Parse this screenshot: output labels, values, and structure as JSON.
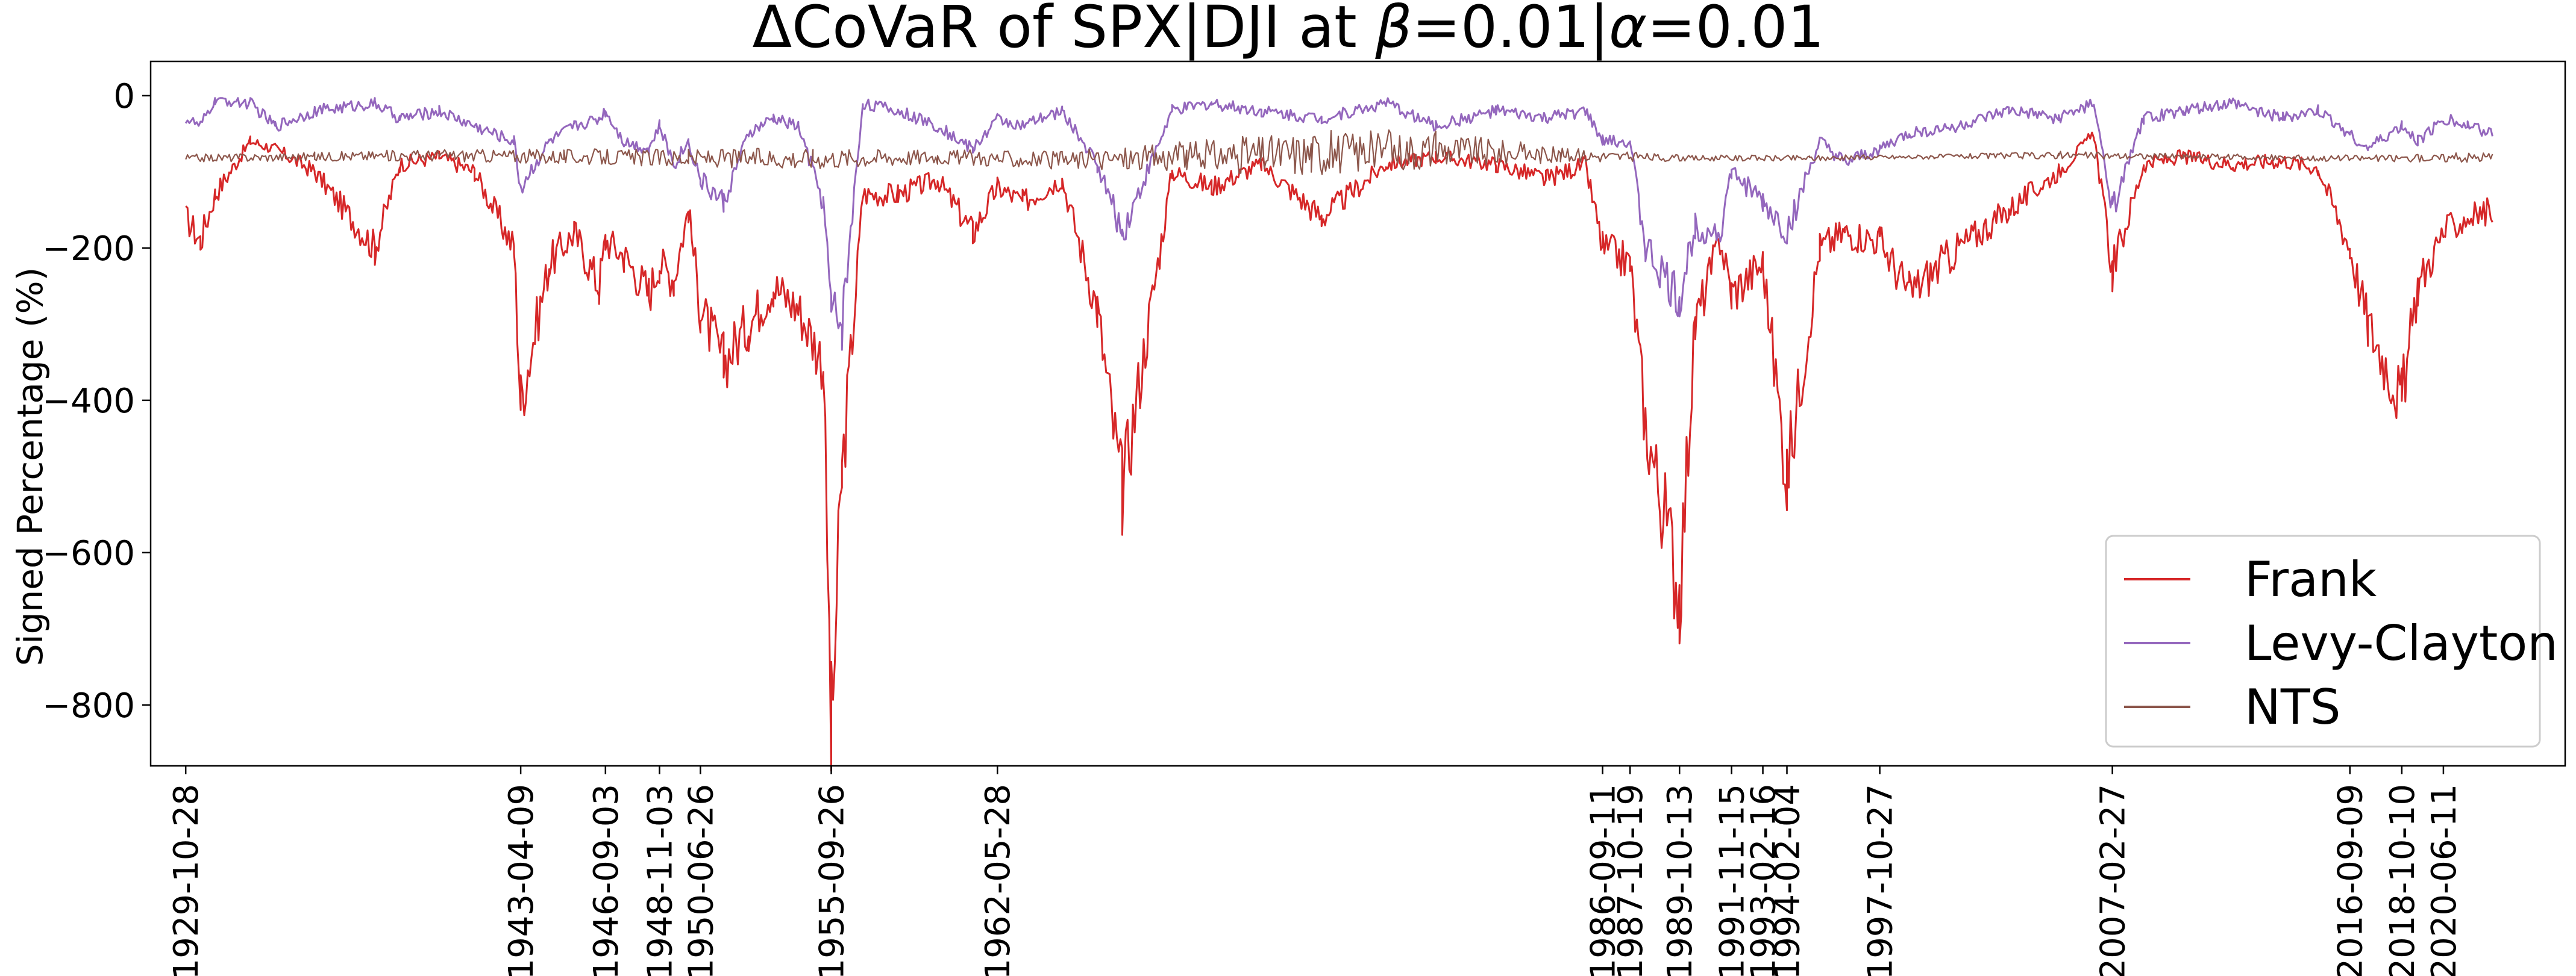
{
  "chart_data": {
    "type": "line",
    "title_parts": {
      "prefix": "ΔCoVaR of SPX|DJI at ",
      "beta_symbol": "β",
      "beta_value": "=0.01|",
      "alpha_symbol": "α",
      "alpha_value": "=0.01"
    },
    "xlabel": "",
    "ylabel": "Signed Percentage (%)",
    "ylim": [
      -880,
      45
    ],
    "yticks": [
      0,
      -200,
      -400,
      -600,
      -800
    ],
    "ytick_labels": [
      "0",
      "−200",
      "−400",
      "−600",
      "−800"
    ],
    "xlim": [
      "1928-06-01",
      "2025-05-01"
    ],
    "xtick_labels": [
      "1929-10-28",
      "1943-04-09",
      "1946-09-03",
      "1948-11-03",
      "1950-06-26",
      "1955-09-26",
      "1962-05-28",
      "1986-09-11",
      "1987-10-19",
      "1989-10-13",
      "1991-11-15",
      "1993-02-16",
      "1994-02-04",
      "1997-10-27",
      "2007-02-27",
      "2016-09-09",
      "2018-10-10",
      "2020-06-11"
    ],
    "grid": false,
    "legend_position": "bottom-right",
    "series": [
      {
        "name": "Frank",
        "color": "#d62728",
        "x": [
          "1929-10-28",
          "1930-06-01",
          "1931-01-01",
          "1932-06-01",
          "1933-06-01",
          "1935-01-01",
          "1937-06-01",
          "1938-06-01",
          "1940-01-01",
          "1941-06-01",
          "1943-01-01",
          "1943-04-09",
          "1944-06-01",
          "1945-06-01",
          "1946-06-01",
          "1946-09-03",
          "1947-06-01",
          "1948-06-01",
          "1948-11-03",
          "1949-06-01",
          "1950-01-01",
          "1950-06-26",
          "1951-06-01",
          "1952-06-01",
          "1953-06-01",
          "1954-06-01",
          "1955-06-01",
          "1955-09-26",
          "1956-03-01",
          "1957-01-01",
          "1958-06-01",
          "1960-01-01",
          "1961-06-01",
          "1962-05-28",
          "1963-06-01",
          "1965-01-01",
          "1966-06-01",
          "1967-06-01",
          "1969-06-01",
          "1971-01-01",
          "1973-01-01",
          "1975-06-01",
          "1978-01-01",
          "1980-01-01",
          "1982-06-01",
          "1984-06-01",
          "1986-01-01",
          "1986-09-11",
          "1987-10-19",
          "1988-06-01",
          "1989-10-13",
          "1990-06-01",
          "1991-06-01",
          "1991-11-15",
          "1993-02-16",
          "1994-02-04",
          "1995-06-01",
          "1996-06-01",
          "1997-10-27",
          "1999-01-01",
          "2001-01-01",
          "2003-01-01",
          "2005-01-01",
          "2006-06-01",
          "2007-02-27",
          "2008-06-01",
          "2010-01-01",
          "2012-01-01",
          "2014-01-01",
          "2015-06-01",
          "2016-09-09",
          "2017-06-01",
          "2018-10-10",
          "2019-06-01",
          "2020-06-11",
          "2021-06-01",
          "2022-06-01"
        ],
        "y": [
          -160,
          -190,
          -130,
          -60,
          -70,
          -100,
          -200,
          -90,
          -80,
          -100,
          -200,
          -400,
          -220,
          -180,
          -250,
          -190,
          -210,
          -260,
          -220,
          -240,
          -150,
          -280,
          -350,
          -300,
          -250,
          -280,
          -350,
          -840,
          -500,
          -130,
          -130,
          -110,
          -180,
          -120,
          -140,
          -110,
          -280,
          -520,
          -100,
          -120,
          -90,
          -160,
          -90,
          -80,
          -90,
          -110,
          -90,
          -200,
          -220,
          -430,
          -650,
          -300,
          -190,
          -260,
          -220,
          -500,
          -200,
          -180,
          -190,
          -260,
          -200,
          -150,
          -100,
          -50,
          -230,
          -90,
          -80,
          -90,
          -85,
          -95,
          -200,
          -300,
          -400,
          -250,
          -180,
          -160,
          -150
        ]
      },
      {
        "name": "Levy-Clayton",
        "color": "#9467bd",
        "x": [
          "1929-10-28",
          "1930-06-01",
          "1931-01-01",
          "1932-06-01",
          "1933-06-01",
          "1935-01-01",
          "1937-06-01",
          "1938-06-01",
          "1940-01-01",
          "1941-06-01",
          "1943-01-01",
          "1943-04-09",
          "1944-06-01",
          "1945-06-01",
          "1946-06-01",
          "1946-09-03",
          "1947-06-01",
          "1948-06-01",
          "1948-11-03",
          "1949-06-01",
          "1950-01-01",
          "1950-06-26",
          "1951-06-01",
          "1952-06-01",
          "1953-06-01",
          "1954-06-01",
          "1955-06-01",
          "1955-09-26",
          "1956-03-01",
          "1957-01-01",
          "1958-06-01",
          "1960-01-01",
          "1961-06-01",
          "1962-05-28",
          "1963-06-01",
          "1965-01-01",
          "1966-06-01",
          "1967-06-01",
          "1969-06-01",
          "1971-01-01",
          "1973-01-01",
          "1975-06-01",
          "1978-01-01",
          "1980-01-01",
          "1982-06-01",
          "1984-06-01",
          "1986-01-01",
          "1986-09-11",
          "1987-10-19",
          "1988-06-01",
          "1989-10-13",
          "1990-06-01",
          "1991-06-01",
          "1991-11-15",
          "1993-02-16",
          "1994-02-04",
          "1995-06-01",
          "1996-06-01",
          "1997-10-27",
          "1999-01-01",
          "2001-01-01",
          "2003-01-01",
          "2005-01-01",
          "2006-06-01",
          "2007-02-27",
          "2008-06-01",
          "2010-01-01",
          "2012-01-01",
          "2014-01-01",
          "2015-06-01",
          "2016-09-09",
          "2017-06-01",
          "2018-10-10",
          "2019-06-01",
          "2020-06-11",
          "2021-06-01",
          "2022-06-01"
        ],
        "y": [
          -30,
          -40,
          -5,
          -10,
          -40,
          -20,
          -10,
          -30,
          -20,
          -40,
          -60,
          -120,
          -60,
          -40,
          -30,
          -20,
          -60,
          -70,
          -40,
          -90,
          -60,
          -110,
          -140,
          -50,
          -30,
          -40,
          -140,
          -280,
          -300,
          -10,
          -20,
          -40,
          -70,
          -30,
          -40,
          -20,
          -90,
          -180,
          -20,
          -10,
          -20,
          -30,
          -10,
          -40,
          -20,
          -30,
          -20,
          -60,
          -60,
          -200,
          -270,
          -170,
          -180,
          -100,
          -140,
          -180,
          -60,
          -90,
          -70,
          -50,
          -40,
          -20,
          -30,
          -10,
          -150,
          -30,
          -20,
          -10,
          -30,
          -20,
          -50,
          -70,
          -40,
          -60,
          -30,
          -40,
          -50
        ]
      },
      {
        "name": "NTS",
        "color": "#8c564b",
        "x": [
          "1929-10-28",
          "1935-01-01",
          "1940-01-01",
          "1945-01-01",
          "1950-01-01",
          "1955-01-01",
          "1960-01-01",
          "1965-01-01",
          "1970-01-01",
          "1975-01-01",
          "1980-01-01",
          "1985-01-01",
          "1990-01-01",
          "1995-01-01",
          "2000-01-01",
          "2005-01-01",
          "2010-01-01",
          "2015-01-01",
          "2020-01-01",
          "2022-06-01"
        ],
        "y": [
          -82,
          -80,
          -78,
          -80,
          -82,
          -82,
          -80,
          -85,
          -80,
          -75,
          -70,
          -78,
          -82,
          -82,
          -80,
          -78,
          -80,
          -82,
          -82,
          -80
        ],
        "band": [
          5,
          6,
          8,
          10,
          12,
          14,
          10,
          12,
          20,
          30,
          25,
          10,
          4,
          4,
          3,
          5,
          4,
          4,
          5,
          8
        ]
      }
    ]
  }
}
